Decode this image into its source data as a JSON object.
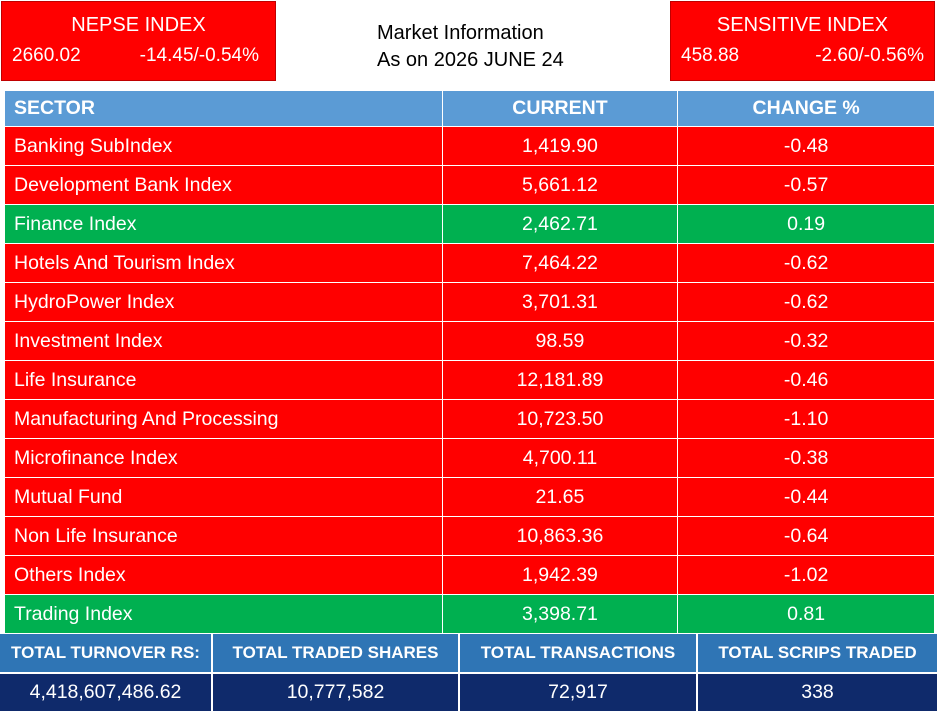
{
  "nepse": {
    "title": "NEPSE INDEX",
    "value": "2660.02",
    "change": "-14.45/-0.54%"
  },
  "sensitive": {
    "title": "SENSITIVE INDEX",
    "value": "458.88",
    "change": "-2.60/-0.56%"
  },
  "market_info": {
    "line1": "Market Information",
    "line2": "As on 2026 JUNE 24"
  },
  "table": {
    "headers": {
      "sector": "SECTOR",
      "current": "CURRENT",
      "change": "CHANGE %"
    },
    "rows": [
      {
        "sector": "Banking SubIndex",
        "current": "1,419.90",
        "change": "-0.48"
      },
      {
        "sector": "Development Bank Index",
        "current": "5,661.12",
        "change": "-0.57"
      },
      {
        "sector": "Finance Index",
        "current": "2,462.71",
        "change": "0.19"
      },
      {
        "sector": "Hotels And Tourism Index",
        "current": "7,464.22",
        "change": "-0.62"
      },
      {
        "sector": "HydroPower Index",
        "current": "3,701.31",
        "change": "-0.62"
      },
      {
        "sector": "Investment Index",
        "current": "98.59",
        "change": "-0.32"
      },
      {
        "sector": "Life Insurance",
        "current": "12,181.89",
        "change": "-0.46"
      },
      {
        "sector": "Manufacturing And Processing",
        "current": "10,723.50",
        "change": "-1.10"
      },
      {
        "sector": "Microfinance Index",
        "current": "4,700.11",
        "change": "-0.38"
      },
      {
        "sector": "Mutual Fund",
        "current": "21.65",
        "change": "-0.44"
      },
      {
        "sector": "Non Life Insurance",
        "current": "10,863.36",
        "change": "-0.64"
      },
      {
        "sector": "Others Index",
        "current": "1,942.39",
        "change": "-1.02"
      },
      {
        "sector": "Trading Index",
        "current": "3,398.71",
        "change": "0.81"
      }
    ]
  },
  "totals": {
    "turnover_label": "TOTAL TURNOVER RS:",
    "shares_label": "TOTAL TRADED SHARES",
    "transactions_label": "TOTAL TRANSACTIONS",
    "scrips_label": "TOTAL SCRIPS TRADED",
    "turnover": "4,418,607,486.62",
    "shares": "10,777,582",
    "transactions": "72,917",
    "scrips": "338"
  },
  "colors": {
    "down": "#ff0000",
    "up": "#00b050",
    "header": "#5b9bd5",
    "totals_header": "#2f75b5",
    "totals_values": "#0f2a6b"
  }
}
